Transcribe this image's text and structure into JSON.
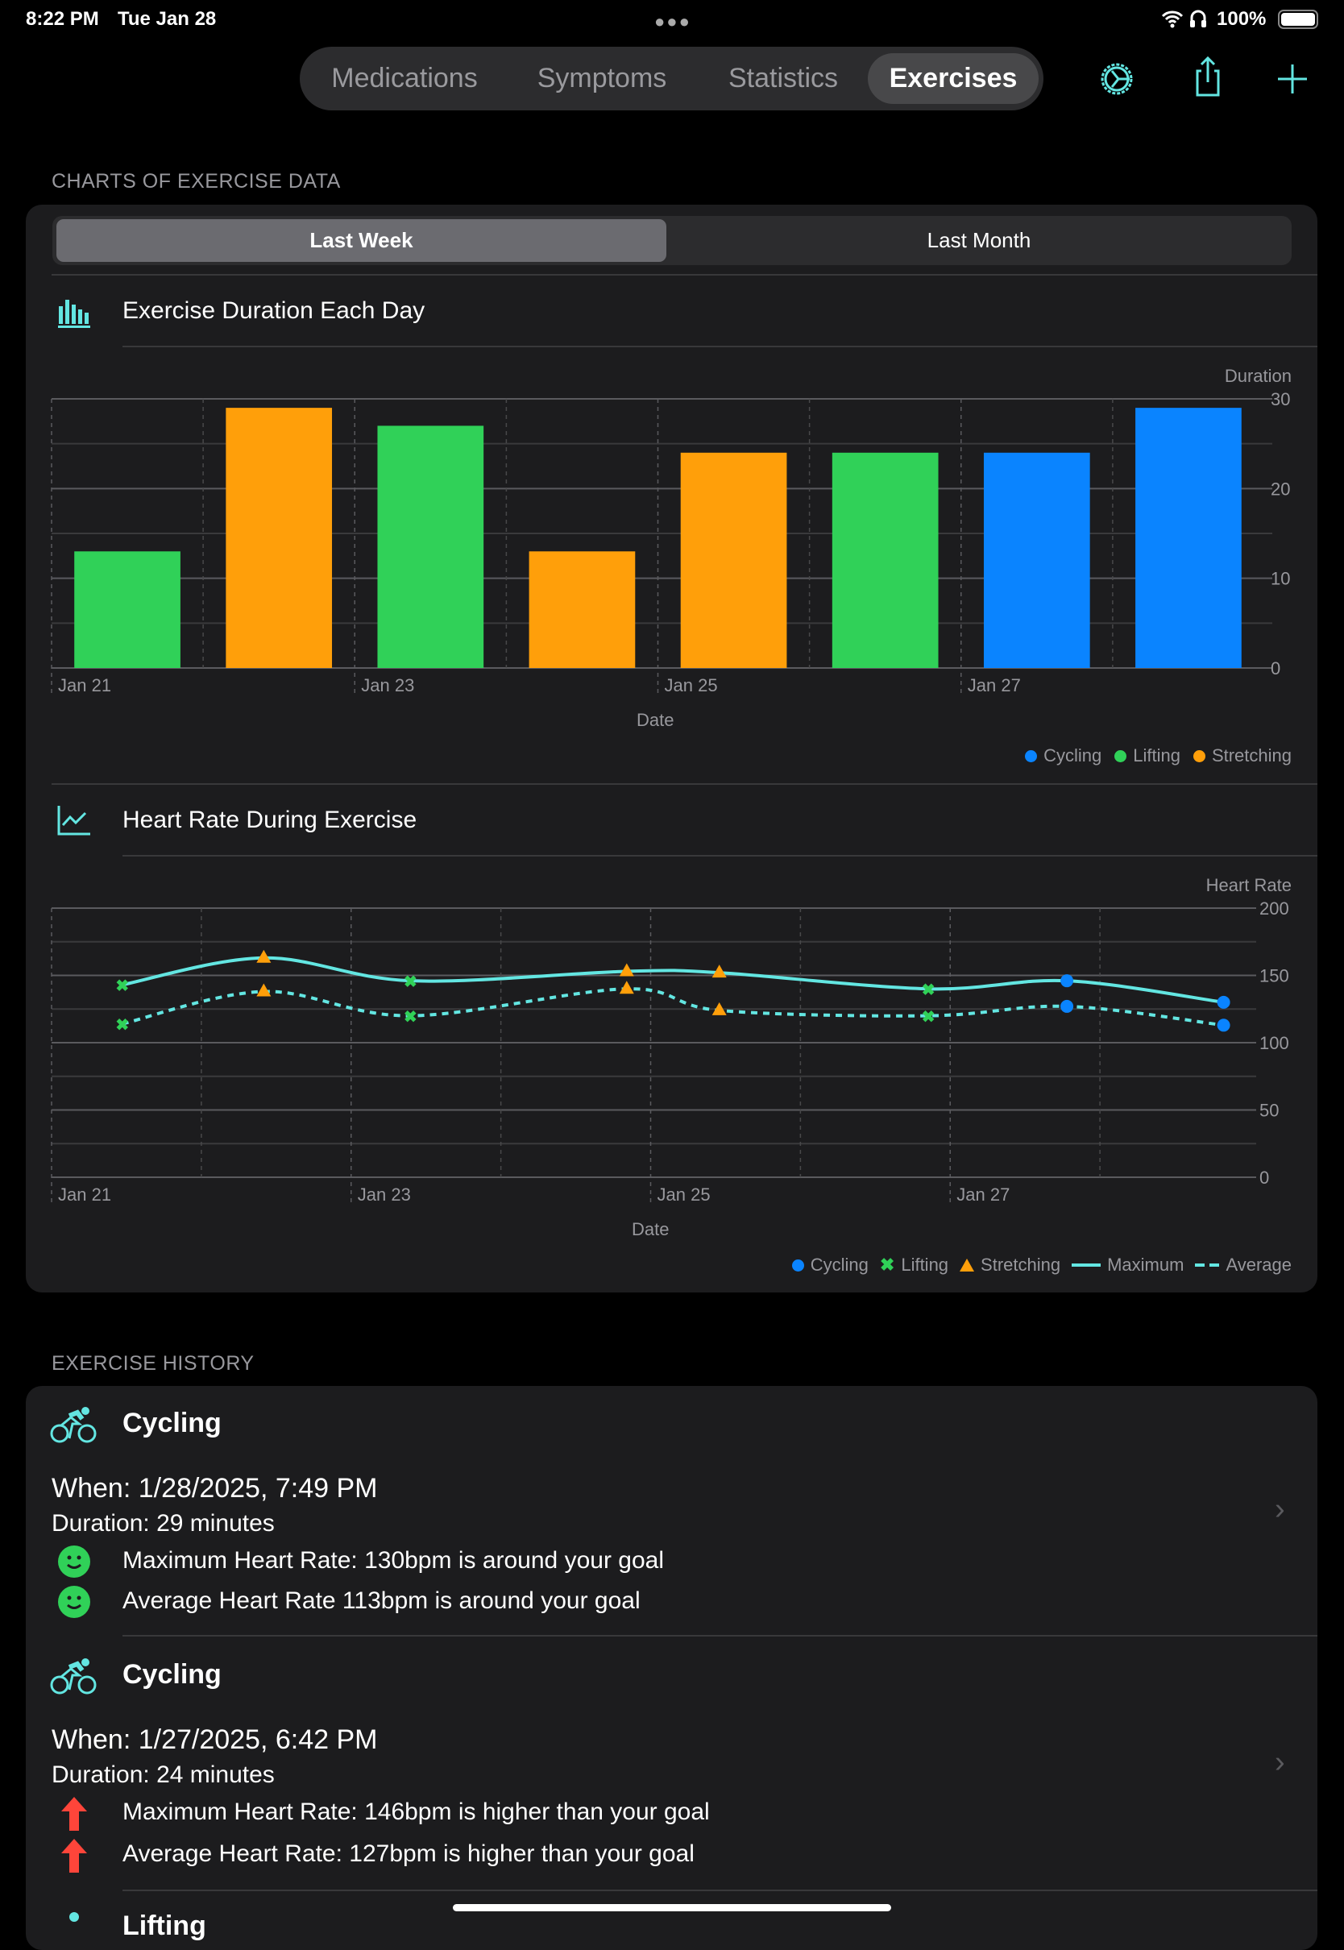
{
  "status_bar": {
    "time": "8:22 PM",
    "date": "Tue Jan 28",
    "battery": "100%"
  },
  "nav": {
    "tabs": [
      {
        "label": "Medications"
      },
      {
        "label": "Symptoms"
      },
      {
        "label": "Statistics"
      },
      {
        "label": "Exercises",
        "selected": true
      }
    ],
    "icons": [
      "gear-icon",
      "share-icon",
      "plus-icon"
    ]
  },
  "colors": {
    "accent": "#63e6e2",
    "cycling": "#0a84ff",
    "lifting": "#30d158",
    "stretching": "#ff9f0a",
    "up": "#ff453a",
    "ok": "#30d158"
  },
  "charts_section": {
    "header": "CHARTS OF EXERCISE DATA",
    "range_options": [
      {
        "label": "Last Week",
        "selected": true
      },
      {
        "label": "Last Month"
      }
    ]
  },
  "chart_data": [
    {
      "type": "bar",
      "title": "Exercise Duration Each Day",
      "xlabel": "Date",
      "ylabel": "Duration",
      "ylim": [
        0,
        30
      ],
      "yticks": [
        0,
        10,
        20,
        30
      ],
      "categories": [
        "Jan 21",
        "Jan 22",
        "Jan 23",
        "Jan 24",
        "Jan 25",
        "Jan 26",
        "Jan 27",
        "Jan 28"
      ],
      "xtick_labels": [
        "Jan 21",
        "Jan 23",
        "Jan 25",
        "Jan 27"
      ],
      "values": [
        13,
        29,
        27,
        13,
        24,
        24,
        24,
        29
      ],
      "types": [
        "Lifting",
        "Stretching",
        "Lifting",
        "Stretching",
        "Stretching",
        "Lifting",
        "Cycling",
        "Cycling"
      ],
      "legend": [
        "Cycling",
        "Lifting",
        "Stretching"
      ],
      "legend_position": "bottom-right",
      "grid": true
    },
    {
      "type": "line",
      "title": "Heart Rate During Exercise",
      "xlabel": "Date",
      "ylabel": "Heart Rate",
      "ylim": [
        0,
        200
      ],
      "yticks": [
        0,
        50,
        100,
        150,
        200
      ],
      "xlim": [
        "2025-01-21T00:00",
        "2025-01-29T00:00"
      ],
      "xtick_labels": [
        "Jan 21",
        "Jan 23",
        "Jan 25",
        "Jan 27"
      ],
      "points": [
        {
          "t": "2025-01-21T11:20",
          "type": "Lifting",
          "max": 143,
          "avg": 114
        },
        {
          "t": "2025-01-22T10:00",
          "type": "Stretching",
          "max": 163,
          "avg": 138
        },
        {
          "t": "2025-01-23T09:30",
          "type": "Lifting",
          "max": 146,
          "avg": 120
        },
        {
          "t": "2025-01-24T20:10",
          "type": "Stretching",
          "max": 153,
          "avg": 140
        },
        {
          "t": "2025-01-25T11:00",
          "type": "Stretching",
          "max": 152,
          "avg": 124
        },
        {
          "t": "2025-01-26T20:30",
          "type": "Lifting",
          "max": 140,
          "avg": 120
        },
        {
          "t": "2025-01-27T18:42",
          "type": "Cycling",
          "max": 146,
          "avg": 127
        },
        {
          "t": "2025-01-28T19:49",
          "type": "Cycling",
          "max": 130,
          "avg": 113
        }
      ],
      "series": [
        {
          "name": "Maximum",
          "style": "solid"
        },
        {
          "name": "Average",
          "style": "dashed"
        }
      ],
      "legend": [
        "Cycling",
        "Lifting",
        "Stretching",
        "Maximum",
        "Average"
      ],
      "legend_position": "bottom-right",
      "grid": true
    }
  ],
  "history": {
    "header": "EXERCISE HISTORY",
    "items": [
      {
        "type": "Cycling",
        "when": "When: 1/28/2025, 7:49 PM",
        "duration": "Duration: 29 minutes",
        "lines": [
          {
            "icon": "smiley-icon",
            "text": "Maximum Heart Rate: 130bpm is around your goal"
          },
          {
            "icon": "smiley-icon",
            "text": "Average Heart Rate 113bpm is around your goal"
          }
        ]
      },
      {
        "type": "Cycling",
        "when": "When: 1/27/2025, 6:42 PM",
        "duration": "Duration: 24 minutes",
        "lines": [
          {
            "icon": "arrow-up-icon",
            "text": "Maximum Heart Rate: 146bpm is higher than your goal"
          },
          {
            "icon": "arrow-up-icon",
            "text": "Average Heart Rate: 127bpm is higher than your goal"
          }
        ]
      },
      {
        "type": "Lifting"
      }
    ]
  }
}
